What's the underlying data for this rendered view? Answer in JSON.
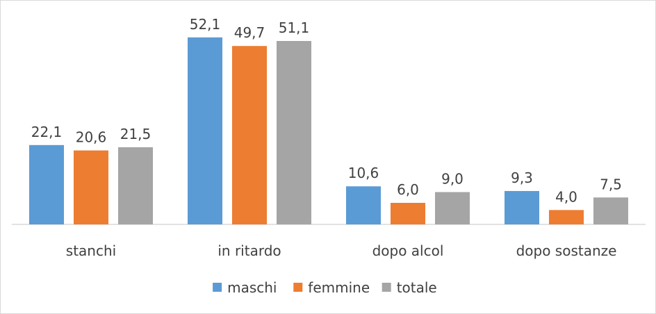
{
  "chart_data": {
    "type": "bar",
    "categories": [
      "stanchi",
      "in ritardo",
      "dopo alcol",
      "dopo sostanze"
    ],
    "series": [
      {
        "name": "maschi",
        "values": [
          22.1,
          52.1,
          10.6,
          9.3
        ],
        "labels": [
          "22,1",
          "52,1",
          "10,6",
          "9,3"
        ],
        "color": "#5b9bd5"
      },
      {
        "name": "femmine",
        "values": [
          20.6,
          49.7,
          6.0,
          4.0
        ],
        "labels": [
          "20,6",
          "49,7",
          "6,0",
          "4,0"
        ],
        "color": "#ed7d31"
      },
      {
        "name": "totale",
        "values": [
          21.5,
          51.1,
          9.0,
          7.5
        ],
        "labels": [
          "21,5",
          "51,1",
          "9,0",
          "7,5"
        ],
        "color": "#a5a5a5"
      }
    ],
    "ylim": [
      0,
      60
    ],
    "grid": false,
    "legend": "bottom",
    "title": "",
    "xlabel": "",
    "ylabel": ""
  }
}
